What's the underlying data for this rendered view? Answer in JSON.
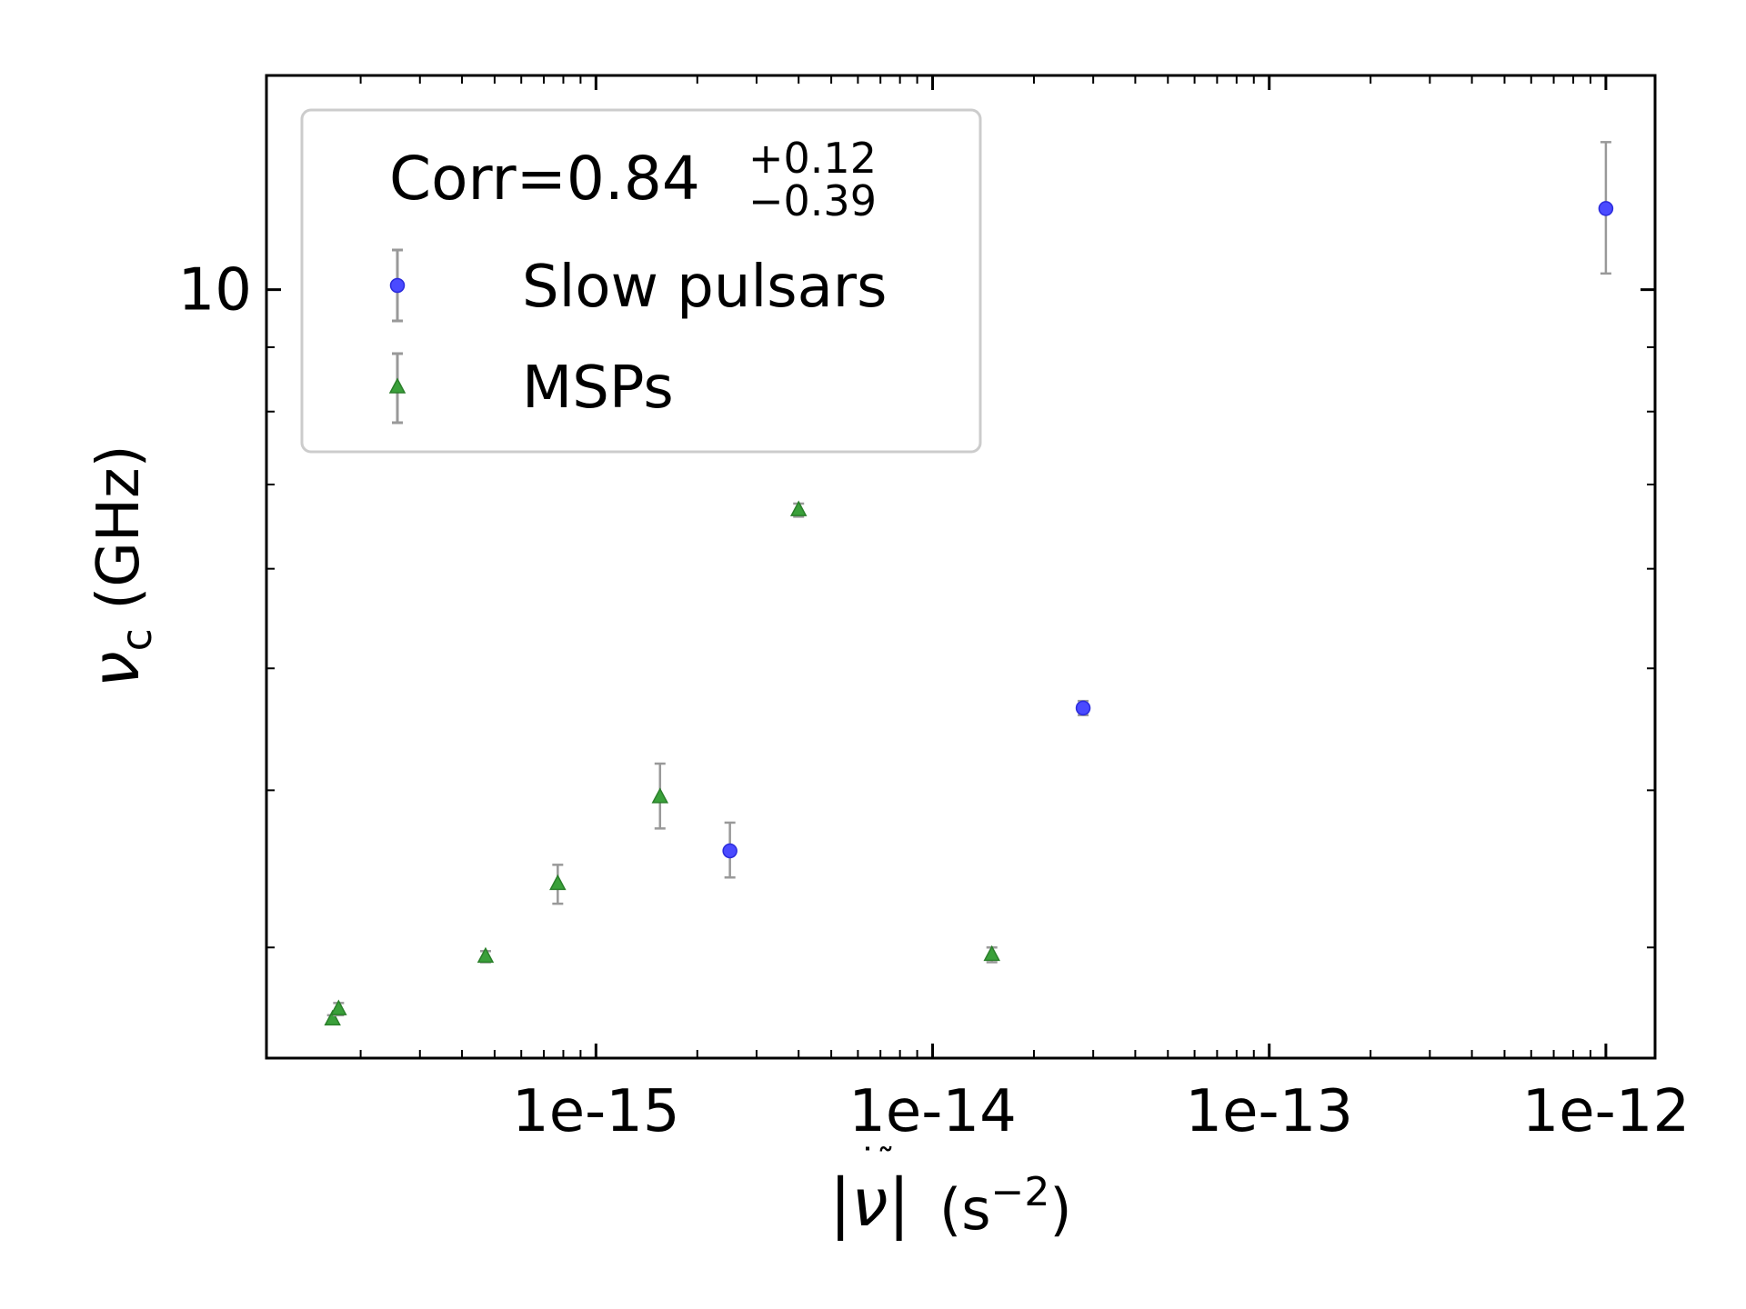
{
  "chart_data": {
    "type": "scatter",
    "title": "",
    "xlabel": {
      "base": "|",
      "nu": "ν",
      "bar": "|",
      "unit": "(s",
      "exp": "−2",
      "close": ")"
    },
    "ylabel": {
      "main": "ν",
      "sub": "c",
      "unit": "(GHz)"
    },
    "x_scale": "log",
    "y_scale": "log",
    "xlim": [
      1.05e-16,
      1.4e-12
    ],
    "ylim": [
      2.45,
      14.8
    ],
    "x_ticks": [
      {
        "value": 1e-15,
        "label": "1e-15"
      },
      {
        "value": 1e-14,
        "label": "1e-14"
      },
      {
        "value": 1e-13,
        "label": "1e-13"
      },
      {
        "value": 1e-12,
        "label": "1e-12"
      }
    ],
    "y_ticks": [
      {
        "value": 10,
        "label": "10"
      }
    ],
    "legend": {
      "placement": "upper-left",
      "title_main": "Corr=0.84",
      "title_plus": "+0.12",
      "title_minus": "−0.39"
    },
    "series": [
      {
        "name": "Slow pulsars",
        "marker": "circle",
        "color": "#4a4aff",
        "points": [
          {
            "x": 2.5e-15,
            "y": 3.58,
            "err_lo": 0.17,
            "err_hi": 0.19
          },
          {
            "x": 2.8e-14,
            "y": 4.65,
            "err_lo": 0.06,
            "err_hi": 0.06
          },
          {
            "x": 1e-12,
            "y": 11.6,
            "err_lo": 1.3,
            "err_hi": 1.5
          }
        ]
      },
      {
        "name": "MSPs",
        "marker": "triangle",
        "color": "#3aa03a",
        "points": [
          {
            "x": 1.65e-16,
            "y": 2.63,
            "err_lo": 0.02,
            "err_hi": 0.02
          },
          {
            "x": 1.72e-16,
            "y": 2.68,
            "err_lo": 0.03,
            "err_hi": 0.03
          },
          {
            "x": 4.7e-16,
            "y": 2.95,
            "err_lo": 0.03,
            "err_hi": 0.03
          },
          {
            "x": 7.7e-16,
            "y": 3.37,
            "err_lo": 0.12,
            "err_hi": 0.12
          },
          {
            "x": 1.55e-15,
            "y": 3.95,
            "err_lo": 0.22,
            "err_hi": 0.25
          },
          {
            "x": 4e-15,
            "y": 6.68,
            "err_lo": 0.08,
            "err_hi": 0.08
          },
          {
            "x": 1.5e-14,
            "y": 2.96,
            "err_lo": 0.04,
            "err_hi": 0.04
          }
        ]
      }
    ],
    "errorbar_color": "#999999"
  }
}
